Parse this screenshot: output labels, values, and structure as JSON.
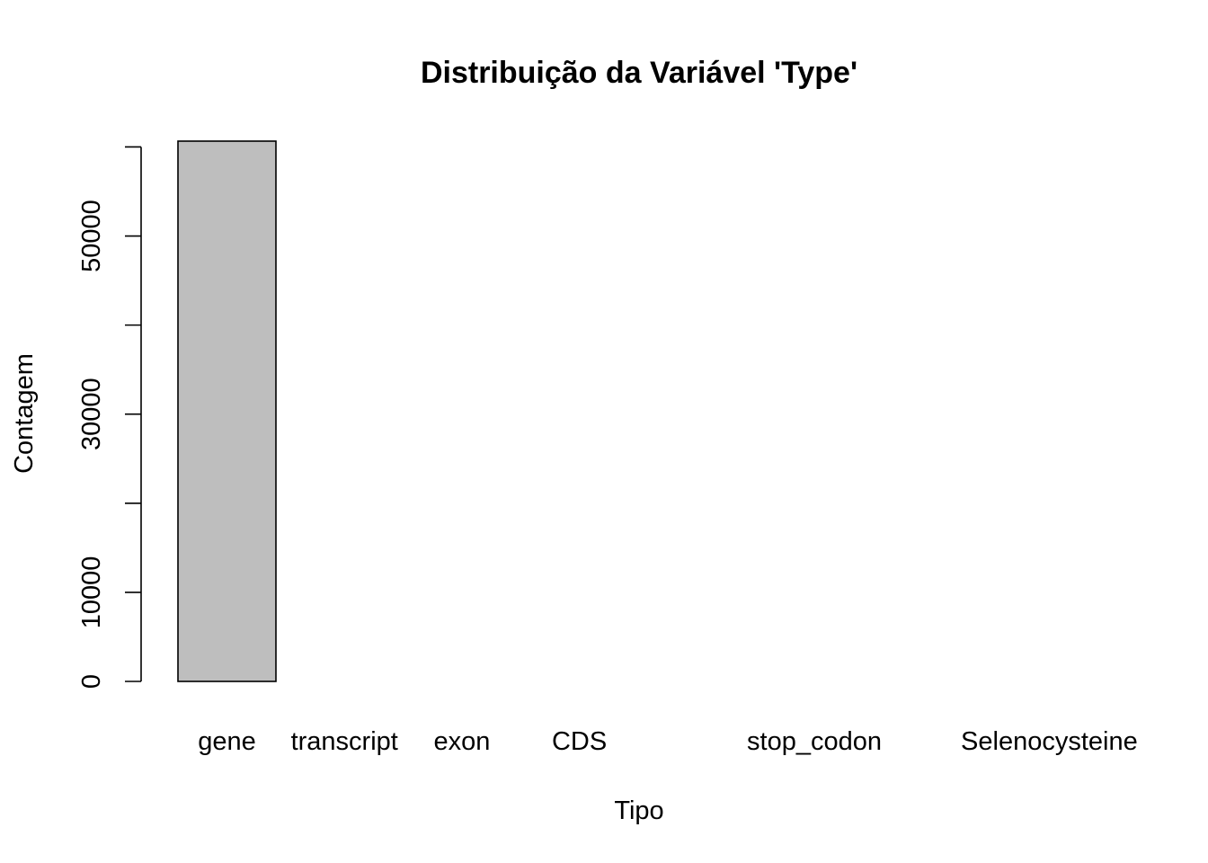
{
  "chart_data": {
    "type": "bar",
    "title": "Distribuição da Variável 'Type'",
    "xlabel": "Tipo",
    "ylabel": "Contagem",
    "categories": [
      "gene",
      "transcript",
      "exon",
      "CDS",
      "",
      "stop_codon",
      "",
      "Selenocysteine"
    ],
    "values": [
      60650,
      0,
      0,
      0,
      0,
      0,
      0,
      0
    ],
    "ylim": [
      0,
      60650
    ],
    "yticks": [
      0,
      10000,
      20000,
      30000,
      40000,
      50000,
      60000
    ],
    "ytick_labels": [
      "0",
      "10000",
      "",
      "30000",
      "",
      "50000",
      ""
    ],
    "grid": false,
    "legend": "none",
    "bar_fill": "#bebebe",
    "bar_stroke": "#000000"
  }
}
